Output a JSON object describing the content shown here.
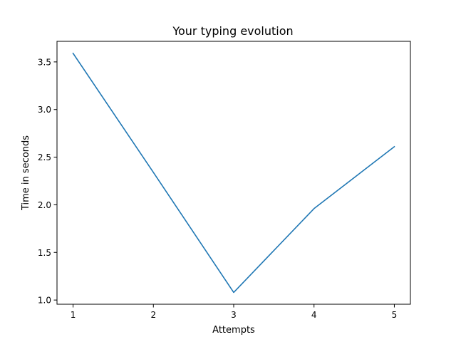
{
  "chart_data": {
    "type": "line",
    "title": "Your typing evolution",
    "xlabel": "Attempts",
    "ylabel": "Time in seconds",
    "x": [
      1,
      2,
      3,
      4,
      5
    ],
    "series": [
      {
        "name": "Time in seconds",
        "values": [
          3.59,
          2.34,
          1.08,
          1.96,
          2.61
        ],
        "color": "#1f77b4"
      }
    ],
    "xlim": [
      0.8,
      5.2
    ],
    "ylim": [
      0.956,
      3.716
    ],
    "xticks": [
      1,
      2,
      3,
      4,
      5
    ],
    "xtick_labels": [
      "1",
      "2",
      "3",
      "4",
      "5"
    ],
    "yticks": [
      1.0,
      1.5,
      2.0,
      2.5,
      3.0,
      3.5
    ],
    "ytick_labels": [
      "1.0",
      "1.5",
      "2.0",
      "2.5",
      "3.0",
      "3.5"
    ],
    "grid": false,
    "legend": "none"
  }
}
